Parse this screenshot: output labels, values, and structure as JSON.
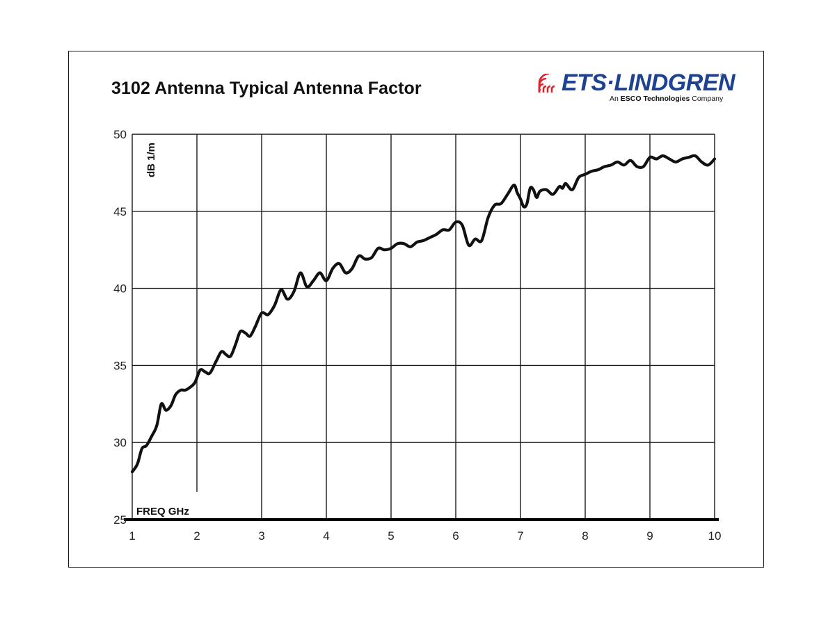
{
  "logo": {
    "brand": "ETS·LINDGREN",
    "registered": "®",
    "tagline_prefix": "An ",
    "tagline_bold": "ESCO Technologies",
    "tagline_suffix": " Company",
    "color": "#1d4294",
    "accent_color": "#d7262e"
  },
  "chart_data": {
    "type": "line",
    "title": "3102 Antenna Typical Antenna Factor",
    "xlabel": "FREQ  GHz",
    "ylabel": "dB 1/m",
    "xlim": [
      1,
      10
    ],
    "ylim": [
      25,
      50
    ],
    "xticks": [
      1,
      2,
      3,
      4,
      5,
      6,
      7,
      8,
      9,
      10
    ],
    "yticks": [
      25,
      30,
      35,
      40,
      45,
      50
    ],
    "grid": true,
    "line_color": "#111111",
    "series": [
      {
        "x": [
          1.0,
          1.08,
          1.15,
          1.22,
          1.3,
          1.38,
          1.45,
          1.52,
          1.6,
          1.67,
          1.75,
          1.82,
          1.9,
          1.97,
          2.05,
          2.12,
          2.2,
          2.3,
          2.38,
          2.45,
          2.52,
          2.6,
          2.67,
          2.75,
          2.82,
          2.9,
          3.0,
          3.1,
          3.2,
          3.3,
          3.4,
          3.5,
          3.6,
          3.7,
          3.8,
          3.9,
          4.0,
          4.1,
          4.2,
          4.3,
          4.4,
          4.5,
          4.6,
          4.7,
          4.8,
          4.9,
          5.0,
          5.1,
          5.2,
          5.3,
          5.4,
          5.5,
          5.6,
          5.7,
          5.8,
          5.9,
          6.0,
          6.1,
          6.2,
          6.3,
          6.4,
          6.5,
          6.6,
          6.7,
          6.8,
          6.9,
          6.95,
          7.0,
          7.05,
          7.1,
          7.15,
          7.2,
          7.25,
          7.3,
          7.4,
          7.5,
          7.6,
          7.65,
          7.7,
          7.8,
          7.9,
          8.0,
          8.1,
          8.2,
          8.3,
          8.4,
          8.5,
          8.6,
          8.7,
          8.8,
          8.9,
          9.0,
          9.1,
          9.2,
          9.3,
          9.4,
          9.5,
          9.6,
          9.7,
          9.8,
          9.9,
          10.0
        ],
        "values": [
          28.1,
          28.6,
          29.6,
          29.8,
          30.4,
          31.1,
          32.5,
          32.1,
          32.4,
          33.1,
          33.4,
          33.4,
          33.6,
          33.9,
          34.7,
          34.6,
          34.5,
          35.3,
          35.9,
          35.7,
          35.6,
          36.4,
          37.2,
          37.1,
          36.9,
          37.5,
          38.4,
          38.3,
          38.9,
          39.9,
          39.3,
          39.8,
          41.0,
          40.1,
          40.5,
          41.0,
          40.5,
          41.3,
          41.6,
          41.0,
          41.3,
          42.1,
          41.9,
          42.0,
          42.6,
          42.5,
          42.6,
          42.9,
          42.9,
          42.7,
          43.0,
          43.1,
          43.3,
          43.5,
          43.8,
          43.8,
          44.3,
          44.1,
          42.8,
          43.2,
          43.1,
          44.6,
          45.4,
          45.5,
          46.1,
          46.7,
          46.2,
          45.8,
          45.3,
          45.5,
          46.5,
          46.4,
          45.9,
          46.3,
          46.4,
          46.1,
          46.6,
          46.5,
          46.8,
          46.4,
          47.2,
          47.4,
          47.6,
          47.7,
          47.9,
          48.0,
          48.2,
          48.0,
          48.3,
          47.9,
          47.9,
          48.5,
          48.4,
          48.6,
          48.4,
          48.2,
          48.4,
          48.5,
          48.6,
          48.2,
          48.0,
          48.4
        ]
      }
    ]
  }
}
